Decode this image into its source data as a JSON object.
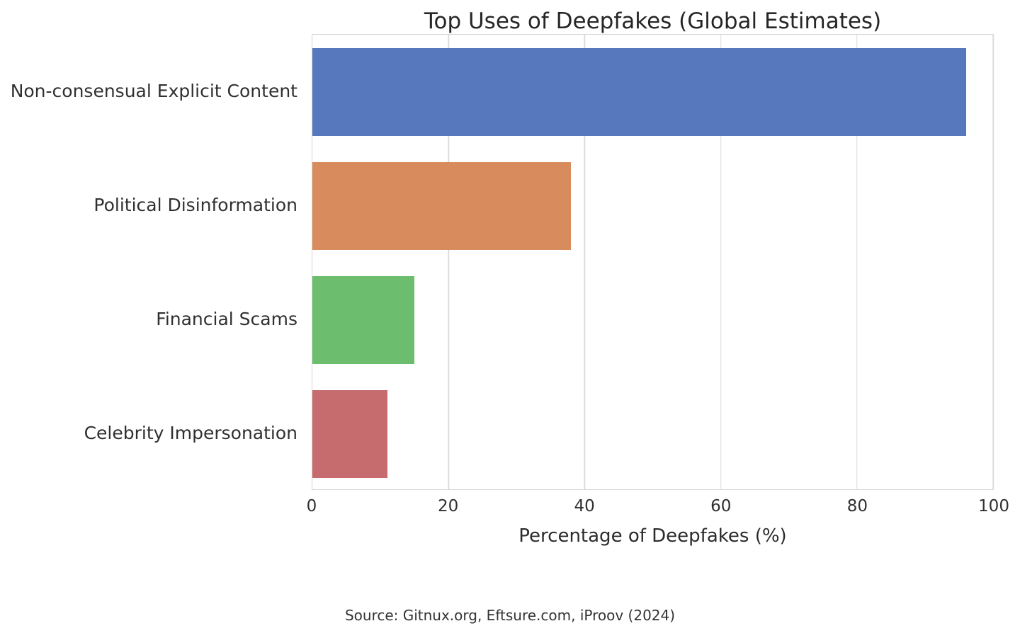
{
  "chart_data": {
    "type": "bar",
    "orientation": "horizontal",
    "title": "Top Uses of Deepfakes (Global Estimates)",
    "categories": [
      "Non-consensual Explicit Content",
      "Political Disinformation",
      "Financial Scams",
      "Celebrity Impersonation"
    ],
    "values": [
      96,
      38,
      15,
      11
    ],
    "bar_colors": [
      "#5878be",
      "#d88c5e",
      "#6dbd6f",
      "#c66c6e"
    ],
    "xlabel": "Percentage of Deepfakes (%)",
    "ylabel": "",
    "xlim": [
      0,
      100
    ],
    "x_ticks": [
      0,
      20,
      40,
      60,
      80,
      100
    ],
    "grid": "vertical",
    "legend": "none",
    "annotation": "Source: Gitnux.org, Eftsure.com, iProov (2024)"
  }
}
